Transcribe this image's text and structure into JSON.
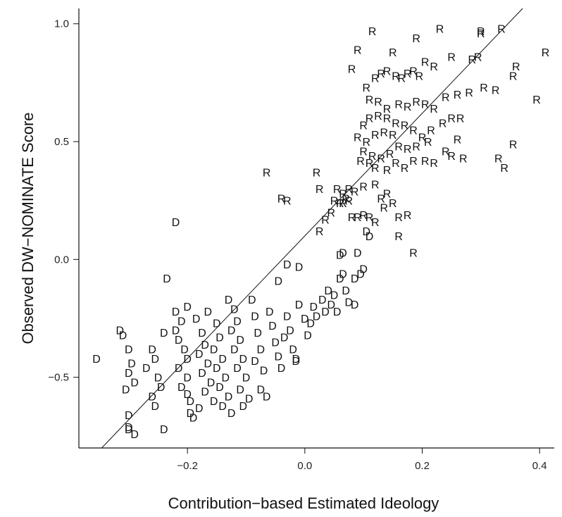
{
  "chart_data": {
    "type": "scatter",
    "title": "",
    "xlabel": "Contribution−based Estimated Ideology",
    "ylabel": "Observed DW−NOMINATE Score",
    "xlim": [
      -0.385,
      0.425
    ],
    "ylim": [
      -0.8,
      1.065
    ],
    "x_ticks": [
      -0.2,
      0.0,
      0.2,
      0.4
    ],
    "x_tick_labels": [
      "−0.2",
      "0.0",
      "0.2",
      "0.4"
    ],
    "y_ticks": [
      -0.5,
      0.0,
      0.5,
      1.0
    ],
    "y_tick_labels": [
      "−0.5",
      "0.0",
      "0.5",
      "1.0"
    ],
    "grid": false,
    "legend": "none",
    "reference_line": {
      "slope": 2.6,
      "intercept": 0.1
    },
    "markers": {
      "D": "D",
      "R": "R"
    },
    "series": [
      {
        "party": "D",
        "points": [
          [
            -0.355,
            -0.42
          ],
          [
            -0.305,
            -0.55
          ],
          [
            -0.3,
            -0.66
          ],
          [
            -0.3,
            -0.71
          ],
          [
            -0.3,
            -0.72
          ],
          [
            -0.29,
            -0.74
          ],
          [
            -0.31,
            -0.32
          ],
          [
            -0.3,
            -0.38
          ],
          [
            -0.295,
            -0.44
          ],
          [
            -0.3,
            -0.48
          ],
          [
            -0.29,
            -0.52
          ],
          [
            -0.315,
            -0.3
          ],
          [
            -0.24,
            -0.31
          ],
          [
            -0.26,
            -0.38
          ],
          [
            -0.255,
            -0.42
          ],
          [
            -0.27,
            -0.46
          ],
          [
            -0.25,
            -0.5
          ],
          [
            -0.245,
            -0.54
          ],
          [
            -0.26,
            -0.58
          ],
          [
            -0.255,
            -0.62
          ],
          [
            -0.24,
            -0.72
          ],
          [
            -0.235,
            -0.08
          ],
          [
            -0.22,
            0.16
          ],
          [
            -0.22,
            -0.22
          ],
          [
            -0.21,
            -0.26
          ],
          [
            -0.22,
            -0.3
          ],
          [
            -0.215,
            -0.34
          ],
          [
            -0.205,
            -0.38
          ],
          [
            -0.2,
            -0.42
          ],
          [
            -0.215,
            -0.46
          ],
          [
            -0.2,
            -0.5
          ],
          [
            -0.21,
            -0.54
          ],
          [
            -0.2,
            -0.57
          ],
          [
            -0.195,
            -0.6
          ],
          [
            -0.18,
            -0.63
          ],
          [
            -0.195,
            -0.65
          ],
          [
            -0.19,
            -0.67
          ],
          [
            -0.2,
            -0.2
          ],
          [
            -0.185,
            -0.25
          ],
          [
            -0.175,
            -0.31
          ],
          [
            -0.17,
            -0.36
          ],
          [
            -0.18,
            -0.4
          ],
          [
            -0.165,
            -0.44
          ],
          [
            -0.175,
            -0.48
          ],
          [
            -0.16,
            -0.52
          ],
          [
            -0.17,
            -0.56
          ],
          [
            -0.155,
            -0.6
          ],
          [
            -0.165,
            -0.22
          ],
          [
            -0.15,
            -0.27
          ],
          [
            -0.145,
            -0.33
          ],
          [
            -0.155,
            -0.38
          ],
          [
            -0.14,
            -0.42
          ],
          [
            -0.15,
            -0.46
          ],
          [
            -0.135,
            -0.5
          ],
          [
            -0.145,
            -0.54
          ],
          [
            -0.13,
            -0.58
          ],
          [
            -0.14,
            -0.62
          ],
          [
            -0.125,
            -0.65
          ],
          [
            -0.13,
            -0.17
          ],
          [
            -0.12,
            -0.21
          ],
          [
            -0.115,
            -0.26
          ],
          [
            -0.125,
            -0.3
          ],
          [
            -0.11,
            -0.34
          ],
          [
            -0.12,
            -0.38
          ],
          [
            -0.105,
            -0.42
          ],
          [
            -0.115,
            -0.46
          ],
          [
            -0.1,
            -0.5
          ],
          [
            -0.11,
            -0.55
          ],
          [
            -0.095,
            -0.59
          ],
          [
            -0.105,
            -0.62
          ],
          [
            -0.09,
            -0.17
          ],
          [
            -0.085,
            -0.24
          ],
          [
            -0.08,
            -0.31
          ],
          [
            -0.075,
            -0.38
          ],
          [
            -0.085,
            -0.43
          ],
          [
            -0.07,
            -0.47
          ],
          [
            -0.075,
            -0.55
          ],
          [
            -0.065,
            -0.58
          ],
          [
            -0.06,
            -0.22
          ],
          [
            -0.055,
            -0.28
          ],
          [
            -0.05,
            -0.35
          ],
          [
            -0.045,
            -0.41
          ],
          [
            -0.04,
            -0.46
          ],
          [
            -0.035,
            -0.33
          ],
          [
            -0.03,
            -0.24
          ],
          [
            -0.025,
            -0.3
          ],
          [
            -0.02,
            -0.38
          ],
          [
            -0.015,
            -0.43
          ],
          [
            -0.01,
            -0.19
          ],
          [
            0.0,
            -0.25
          ],
          [
            0.005,
            -0.32
          ],
          [
            0.01,
            -0.27
          ],
          [
            -0.045,
            -0.09
          ],
          [
            -0.03,
            -0.02
          ],
          [
            -0.01,
            -0.03
          ],
          [
            0.015,
            -0.2
          ],
          [
            0.02,
            -0.24
          ],
          [
            0.03,
            -0.17
          ],
          [
            0.035,
            -0.22
          ],
          [
            0.04,
            -0.13
          ],
          [
            0.045,
            -0.19
          ],
          [
            0.05,
            -0.15
          ],
          [
            0.055,
            -0.22
          ],
          [
            0.06,
            -0.08
          ],
          [
            0.065,
            -0.06
          ],
          [
            0.07,
            -0.13
          ],
          [
            0.075,
            -0.18
          ],
          [
            0.06,
            0.02
          ],
          [
            0.065,
            0.03
          ],
          [
            0.085,
            -0.08
          ],
          [
            0.095,
            -0.06
          ],
          [
            0.1,
            -0.04
          ],
          [
            0.09,
            0.03
          ],
          [
            0.085,
            -0.19
          ],
          [
            0.105,
            0.12
          ],
          [
            0.11,
            0.1
          ],
          [
            -0.015,
            -0.42
          ]
        ]
      },
      {
        "party": "R",
        "points": [
          [
            0.115,
            0.97
          ],
          [
            0.15,
            0.88
          ],
          [
            0.19,
            0.94
          ],
          [
            0.23,
            0.98
          ],
          [
            0.3,
            0.97
          ],
          [
            0.3,
            0.96
          ],
          [
            0.335,
            0.98
          ],
          [
            0.41,
            0.88
          ],
          [
            0.395,
            0.68
          ],
          [
            0.36,
            0.82
          ],
          [
            0.355,
            0.78
          ],
          [
            0.325,
            0.72
          ],
          [
            0.305,
            0.73
          ],
          [
            0.295,
            0.86
          ],
          [
            0.285,
            0.85
          ],
          [
            0.25,
            0.86
          ],
          [
            0.205,
            0.84
          ],
          [
            0.22,
            0.82
          ],
          [
            0.185,
            0.8
          ],
          [
            0.195,
            0.78
          ],
          [
            0.175,
            0.79
          ],
          [
            0.165,
            0.77
          ],
          [
            0.155,
            0.78
          ],
          [
            0.14,
            0.8
          ],
          [
            0.13,
            0.79
          ],
          [
            0.12,
            0.77
          ],
          [
            0.09,
            0.89
          ],
          [
            0.08,
            0.81
          ],
          [
            0.105,
            0.73
          ],
          [
            0.11,
            0.68
          ],
          [
            0.125,
            0.67
          ],
          [
            0.14,
            0.64
          ],
          [
            0.16,
            0.66
          ],
          [
            0.175,
            0.65
          ],
          [
            0.19,
            0.67
          ],
          [
            0.205,
            0.66
          ],
          [
            0.22,
            0.64
          ],
          [
            0.24,
            0.69
          ],
          [
            0.26,
            0.7
          ],
          [
            0.28,
            0.71
          ],
          [
            0.25,
            0.6
          ],
          [
            0.265,
            0.6
          ],
          [
            0.235,
            0.58
          ],
          [
            0.215,
            0.55
          ],
          [
            0.2,
            0.52
          ],
          [
            0.185,
            0.55
          ],
          [
            0.17,
            0.57
          ],
          [
            0.155,
            0.58
          ],
          [
            0.14,
            0.6
          ],
          [
            0.125,
            0.61
          ],
          [
            0.11,
            0.6
          ],
          [
            0.1,
            0.57
          ],
          [
            0.09,
            0.52
          ],
          [
            0.105,
            0.5
          ],
          [
            0.12,
            0.53
          ],
          [
            0.135,
            0.54
          ],
          [
            0.15,
            0.53
          ],
          [
            0.16,
            0.48
          ],
          [
            0.175,
            0.47
          ],
          [
            0.19,
            0.48
          ],
          [
            0.21,
            0.5
          ],
          [
            0.26,
            0.51
          ],
          [
            0.27,
            0.43
          ],
          [
            0.25,
            0.44
          ],
          [
            0.24,
            0.46
          ],
          [
            0.22,
            0.41
          ],
          [
            0.205,
            0.42
          ],
          [
            0.33,
            0.43
          ],
          [
            0.34,
            0.39
          ],
          [
            0.355,
            0.49
          ],
          [
            0.145,
            0.45
          ],
          [
            0.13,
            0.43
          ],
          [
            0.115,
            0.44
          ],
          [
            0.1,
            0.46
          ],
          [
            0.095,
            0.42
          ],
          [
            0.11,
            0.41
          ],
          [
            0.12,
            0.39
          ],
          [
            0.14,
            0.38
          ],
          [
            0.155,
            0.41
          ],
          [
            0.17,
            0.39
          ],
          [
            0.185,
            0.42
          ],
          [
            -0.065,
            0.37
          ],
          [
            0.02,
            0.37
          ],
          [
            0.025,
            0.3
          ],
          [
            0.055,
            0.3
          ],
          [
            0.065,
            0.28
          ],
          [
            0.075,
            0.3
          ],
          [
            0.085,
            0.29
          ],
          [
            0.1,
            0.31
          ],
          [
            0.12,
            0.32
          ],
          [
            0.13,
            0.26
          ],
          [
            0.14,
            0.28
          ],
          [
            0.05,
            0.25
          ],
          [
            0.06,
            0.24
          ],
          [
            0.065,
            0.24
          ],
          [
            0.07,
            0.26
          ],
          [
            0.075,
            0.25
          ],
          [
            0.045,
            0.2
          ],
          [
            0.035,
            0.17
          ],
          [
            0.025,
            0.12
          ],
          [
            -0.04,
            0.26
          ],
          [
            -0.03,
            0.25
          ],
          [
            0.08,
            0.18
          ],
          [
            0.09,
            0.18
          ],
          [
            0.1,
            0.19
          ],
          [
            0.11,
            0.18
          ],
          [
            0.12,
            0.16
          ],
          [
            0.16,
            0.18
          ],
          [
            0.175,
            0.19
          ],
          [
            0.16,
            0.1
          ],
          [
            0.185,
            0.03
          ],
          [
            0.135,
            0.22
          ],
          [
            0.15,
            0.24
          ]
        ]
      }
    ]
  }
}
